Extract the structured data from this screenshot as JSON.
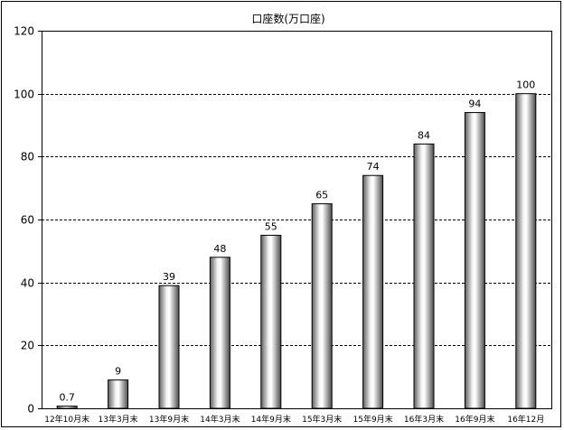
{
  "chart_data": {
    "type": "bar",
    "title": "口座数(万口座)",
    "categories": [
      "12年10月末",
      "13年3月末",
      "13年9月末",
      "14年3月末",
      "14年9月末",
      "15年3月末",
      "15年9月末",
      "16年3月末",
      "16年9月末",
      "16年12月"
    ],
    "values": [
      0.7,
      9,
      39,
      48,
      55,
      65,
      74,
      84,
      94,
      100
    ],
    "data_labels": [
      "0.7",
      "9",
      "39",
      "48",
      "55",
      "65",
      "74",
      "84",
      "94",
      "100"
    ],
    "ylim": [
      0,
      120
    ],
    "yticks": [
      0,
      20,
      40,
      60,
      80,
      100,
      120
    ],
    "ytick_labels": [
      "0",
      "20",
      "40",
      "60",
      "80",
      "100",
      "120"
    ],
    "grid": true,
    "grid_style": "dashed",
    "legend": "none",
    "bar_style": "gray-cylinder"
  }
}
